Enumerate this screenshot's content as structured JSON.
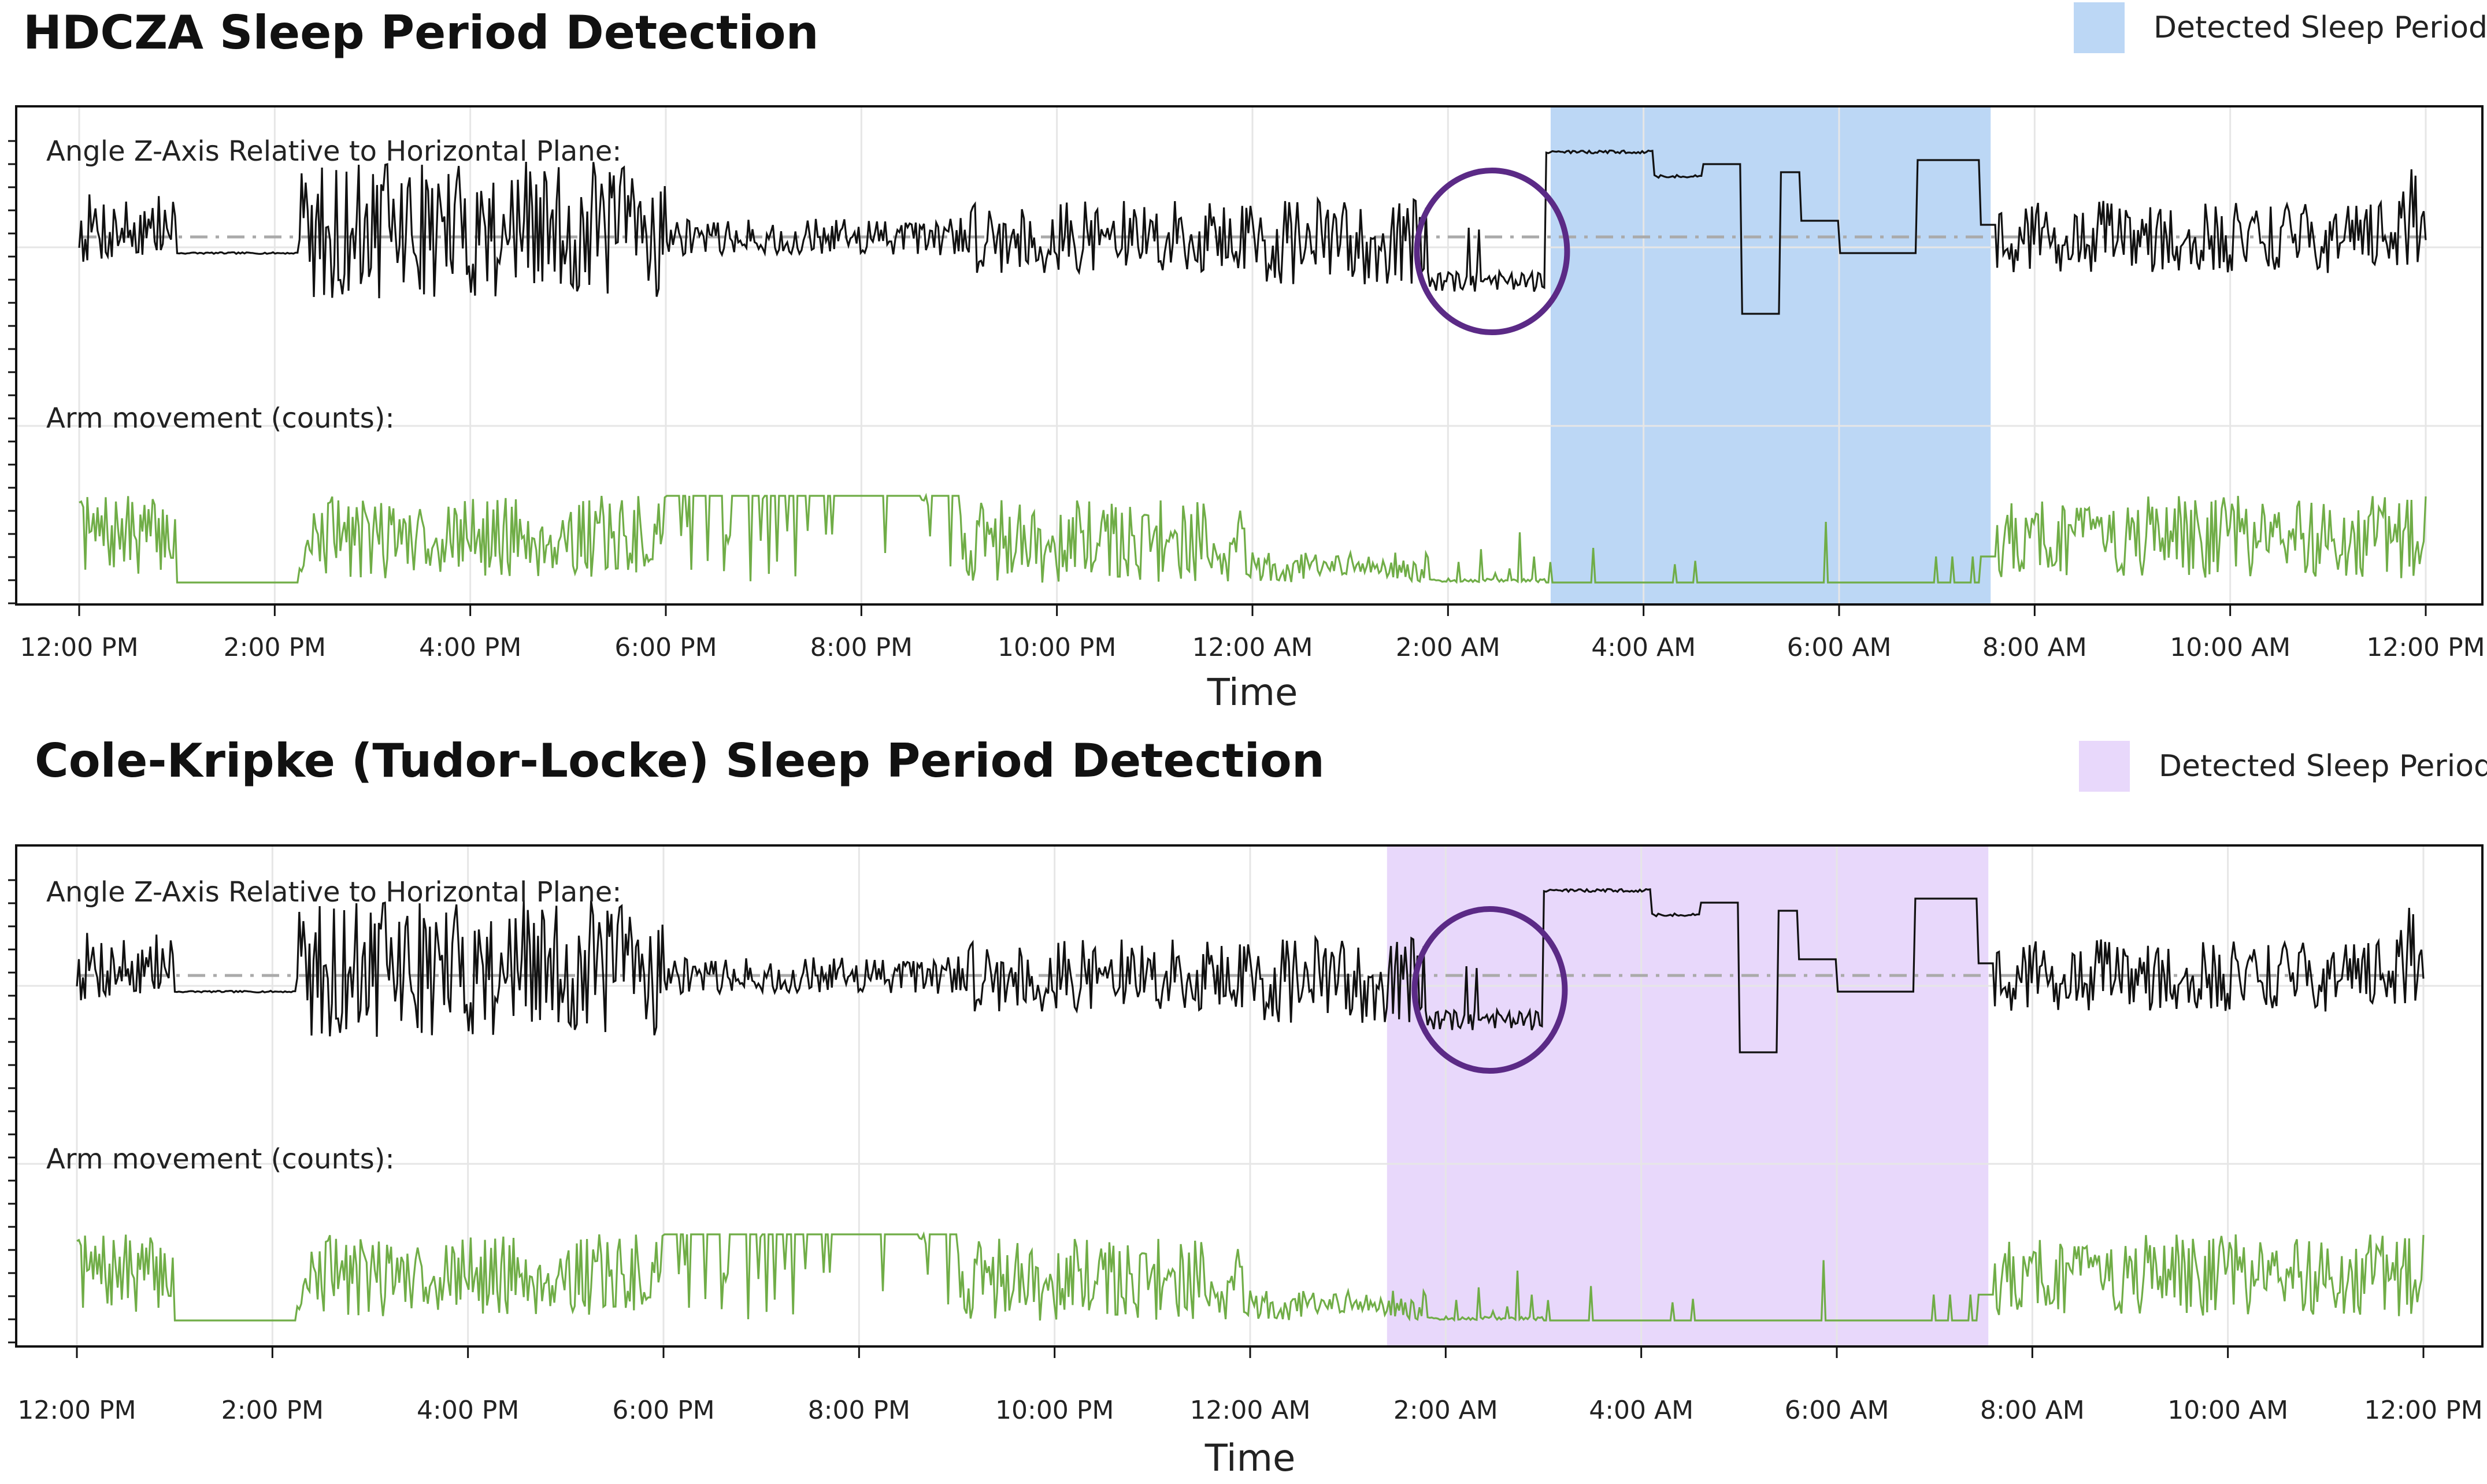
{
  "chart_data": [
    {
      "type": "line",
      "title": "HDCZA Sleep Period Detection",
      "xlabel": "Time",
      "x_ticks": [
        "12:00 PM",
        "2:00 PM",
        "4:00 PM",
        "6:00 PM",
        "8:00 PM",
        "10:00 PM",
        "12:00 AM",
        "2:00 AM",
        "4:00 AM",
        "6:00 AM",
        "8:00 AM",
        "10:00 AM",
        "12:00 PM"
      ],
      "x_range_hours": [
        0,
        24
      ],
      "legend": {
        "label": "Detected Sleep Period",
        "color": "#bcd7f5",
        "position": "top-right"
      },
      "sleep_period_hours": [
        15.05,
        19.55
      ],
      "highlight_circle_hours": [
        13.8,
        15.1
      ],
      "series": [
        {
          "name": "Angle Z-Axis Relative to Horizontal Plane:",
          "color": "#111111"
        },
        {
          "name": "Arm movement (counts):",
          "color": "#70ad47"
        }
      ],
      "grid": true
    },
    {
      "type": "line",
      "title": "Cole-Kripke (Tudor-Locke) Sleep Period Detection",
      "xlabel": "Time",
      "x_ticks": [
        "12:00 PM",
        "2:00 PM",
        "4:00 PM",
        "6:00 PM",
        "8:00 PM",
        "10:00 PM",
        "12:00 AM",
        "2:00 AM",
        "4:00 AM",
        "6:00 AM",
        "8:00 AM",
        "10:00 AM",
        "12:00 PM"
      ],
      "x_range_hours": [
        0,
        24
      ],
      "legend": {
        "label": "Detected Sleep Period",
        "color": "#e8d8fb",
        "position": "top-right"
      },
      "sleep_period_hours": [
        13.4,
        19.55
      ],
      "highlight_circle_hours": [
        13.8,
        15.1
      ],
      "series": [
        {
          "name": "Angle Z-Axis Relative to Horizontal Plane:",
          "color": "#111111"
        },
        {
          "name": "Arm movement (counts):",
          "color": "#70ad47"
        }
      ],
      "grid": true
    }
  ]
}
